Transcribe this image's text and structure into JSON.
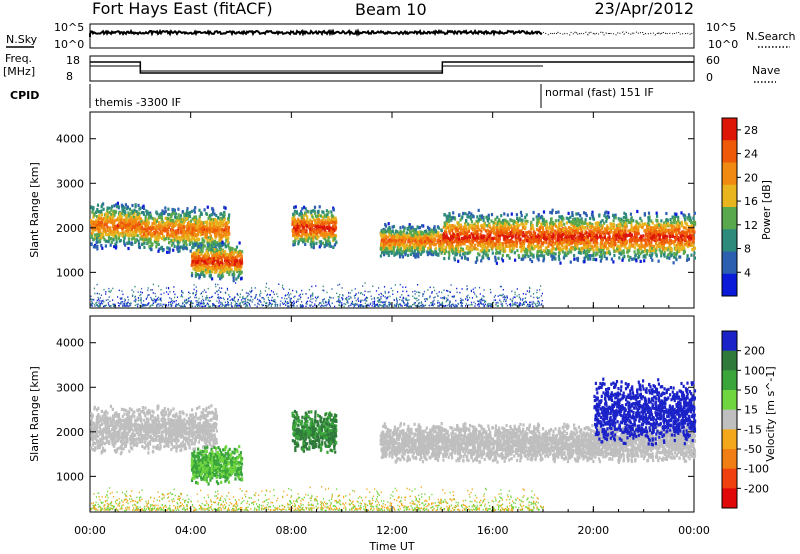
{
  "header": {
    "station": "Fort Hays East (fitACF)",
    "beam": "Beam 10",
    "date": "23/Apr/2012"
  },
  "strip_labels": {
    "nsky": "N.Sky",
    "nsky_top": "10^5",
    "nsky_bottom": "10^0",
    "nsearch": "N.Search",
    "nsearch_top": "10^5",
    "nsearch_bottom": "10^0",
    "freq": "Freq.",
    "freq_unit": "[MHz]",
    "freq_top": "18",
    "freq_bottom": "8",
    "nave": "Nave",
    "nave_top": "60",
    "nave_bottom": "0",
    "cpid": "CPID"
  },
  "cpid_modes": [
    {
      "label": "themis -3300 IF",
      "start": "00:00",
      "end": "18:00"
    },
    {
      "label": "normal (fast) 151 IF",
      "start": "18:00",
      "end": "24:00"
    }
  ],
  "chart_data": [
    {
      "type": "heatmap",
      "name": "power",
      "ylabel": "Slant Range [km]",
      "yticks": [
        1000,
        2000,
        3000,
        4000
      ],
      "ylim": [
        200,
        4600
      ],
      "colorbar": {
        "label": "Power [dB]",
        "ticks": [
          4,
          8,
          12,
          16,
          20,
          24,
          28
        ],
        "range": [
          0,
          30
        ],
        "colors": [
          "#0a1ad8",
          "#2c5fb0",
          "#2e8a7a",
          "#5aa84d",
          "#e8b51e",
          "#f08a10",
          "#ee5a08",
          "#dd1608"
        ]
      },
      "echo_regions_approx": [
        {
          "start": "00:00",
          "end": "02:00",
          "range_km": [
            1500,
            2600
          ],
          "peak_db": 24
        },
        {
          "start": "02:00",
          "end": "05:30",
          "range_km": [
            1400,
            2500
          ],
          "peak_db": 24
        },
        {
          "start": "04:00",
          "end": "06:00",
          "range_km": [
            800,
            1700
          ],
          "peak_db": 28
        },
        {
          "start": "08:00",
          "end": "09:45",
          "range_km": [
            1500,
            2500
          ],
          "peak_db": 28
        },
        {
          "start": "11:30",
          "end": "14:00",
          "range_km": [
            1300,
            2100
          ],
          "peak_db": 24
        },
        {
          "start": "14:00",
          "end": "24:00",
          "range_km": [
            1200,
            2400
          ],
          "peak_db": 28
        }
      ]
    },
    {
      "type": "heatmap",
      "name": "velocity",
      "ylabel": "Slant Range [km]",
      "yticks": [
        1000,
        2000,
        3000,
        4000
      ],
      "ylim": [
        200,
        4600
      ],
      "colorbar": {
        "label": "Velocity [m s^-1]",
        "ticks": [
          200,
          100,
          50,
          15,
          -15,
          -50,
          -100,
          -200
        ],
        "range": [
          -250,
          250
        ],
        "colors": [
          "#1a22c8",
          "#2f7a3a",
          "#3aa53a",
          "#70d640",
          "#bfbfbf",
          "#f2a81a",
          "#f07e12",
          "#f04010",
          "#e00808"
        ]
      },
      "echo_regions_approx": [
        {
          "start": "00:00",
          "end": "05:00",
          "range_km": [
            1500,
            2600
          ],
          "velocity_ms": [
            -15,
            15
          ]
        },
        {
          "start": "04:00",
          "end": "06:00",
          "range_km": [
            800,
            1700
          ],
          "velocity_ms": [
            15,
            100
          ]
        },
        {
          "start": "08:00",
          "end": "09:45",
          "range_km": [
            1500,
            2500
          ],
          "velocity_ms": [
            50,
            200
          ]
        },
        {
          "start": "11:30",
          "end": "24:00",
          "range_km": [
            1300,
            2200
          ],
          "velocity_ms": [
            -15,
            15
          ]
        },
        {
          "start": "20:00",
          "end": "24:00",
          "range_km": [
            1700,
            3200
          ],
          "velocity_ms": [
            200,
            250
          ]
        }
      ]
    }
  ],
  "xaxis": {
    "label": "Time UT",
    "ticks": [
      "00:00",
      "04:00",
      "08:00",
      "12:00",
      "16:00",
      "20:00",
      "00:00"
    ]
  }
}
